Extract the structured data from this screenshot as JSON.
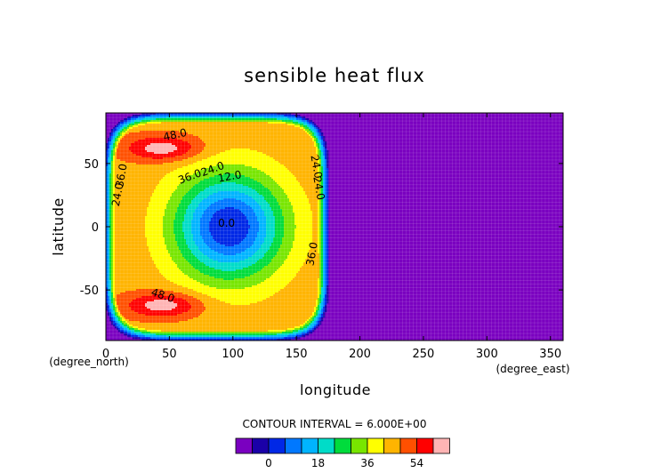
{
  "chart_data": {
    "type": "heatmap",
    "title": "sensible heat flux",
    "xlabel": "longitude",
    "ylabel": "latitude",
    "x_unit": "(degree_east)",
    "y_unit": "(degree_north)",
    "xlim": [
      0,
      360
    ],
    "ylim": [
      -90,
      90
    ],
    "x_ticks": [
      0,
      50,
      100,
      150,
      200,
      250,
      300,
      350
    ],
    "y_ticks": [
      -50,
      0,
      50
    ],
    "contour_interval_text": "CONTOUR INTERVAL = 6.000E+00",
    "contour_labels": [
      "48.0",
      "48.0",
      "36.0",
      "36.0",
      "36.0",
      "24.0",
      "24.0",
      "24.0",
      "24.0",
      "12.0",
      "0.0"
    ],
    "colorbar": {
      "levels": [
        -6,
        0,
        6,
        12,
        18,
        24,
        30,
        36,
        42,
        48,
        54,
        60
      ],
      "colors": [
        "#7a00c0",
        "#1a00a8",
        "#0028e6",
        "#0078ff",
        "#00b4ff",
        "#00dcc8",
        "#00dc3c",
        "#78e600",
        "#ffff00",
        "#ffb400",
        "#ff5000",
        "#ff0000",
        "#ffb4b4"
      ],
      "tick_labels": [
        "0",
        "18",
        "36",
        "54"
      ]
    },
    "field": {
      "description_values": "centre minimum ~0 near lon 97, lat 0; maxima ~60 near lon 40, lat +/-60; zero outside lon 0-175"
    },
    "grid": false
  }
}
